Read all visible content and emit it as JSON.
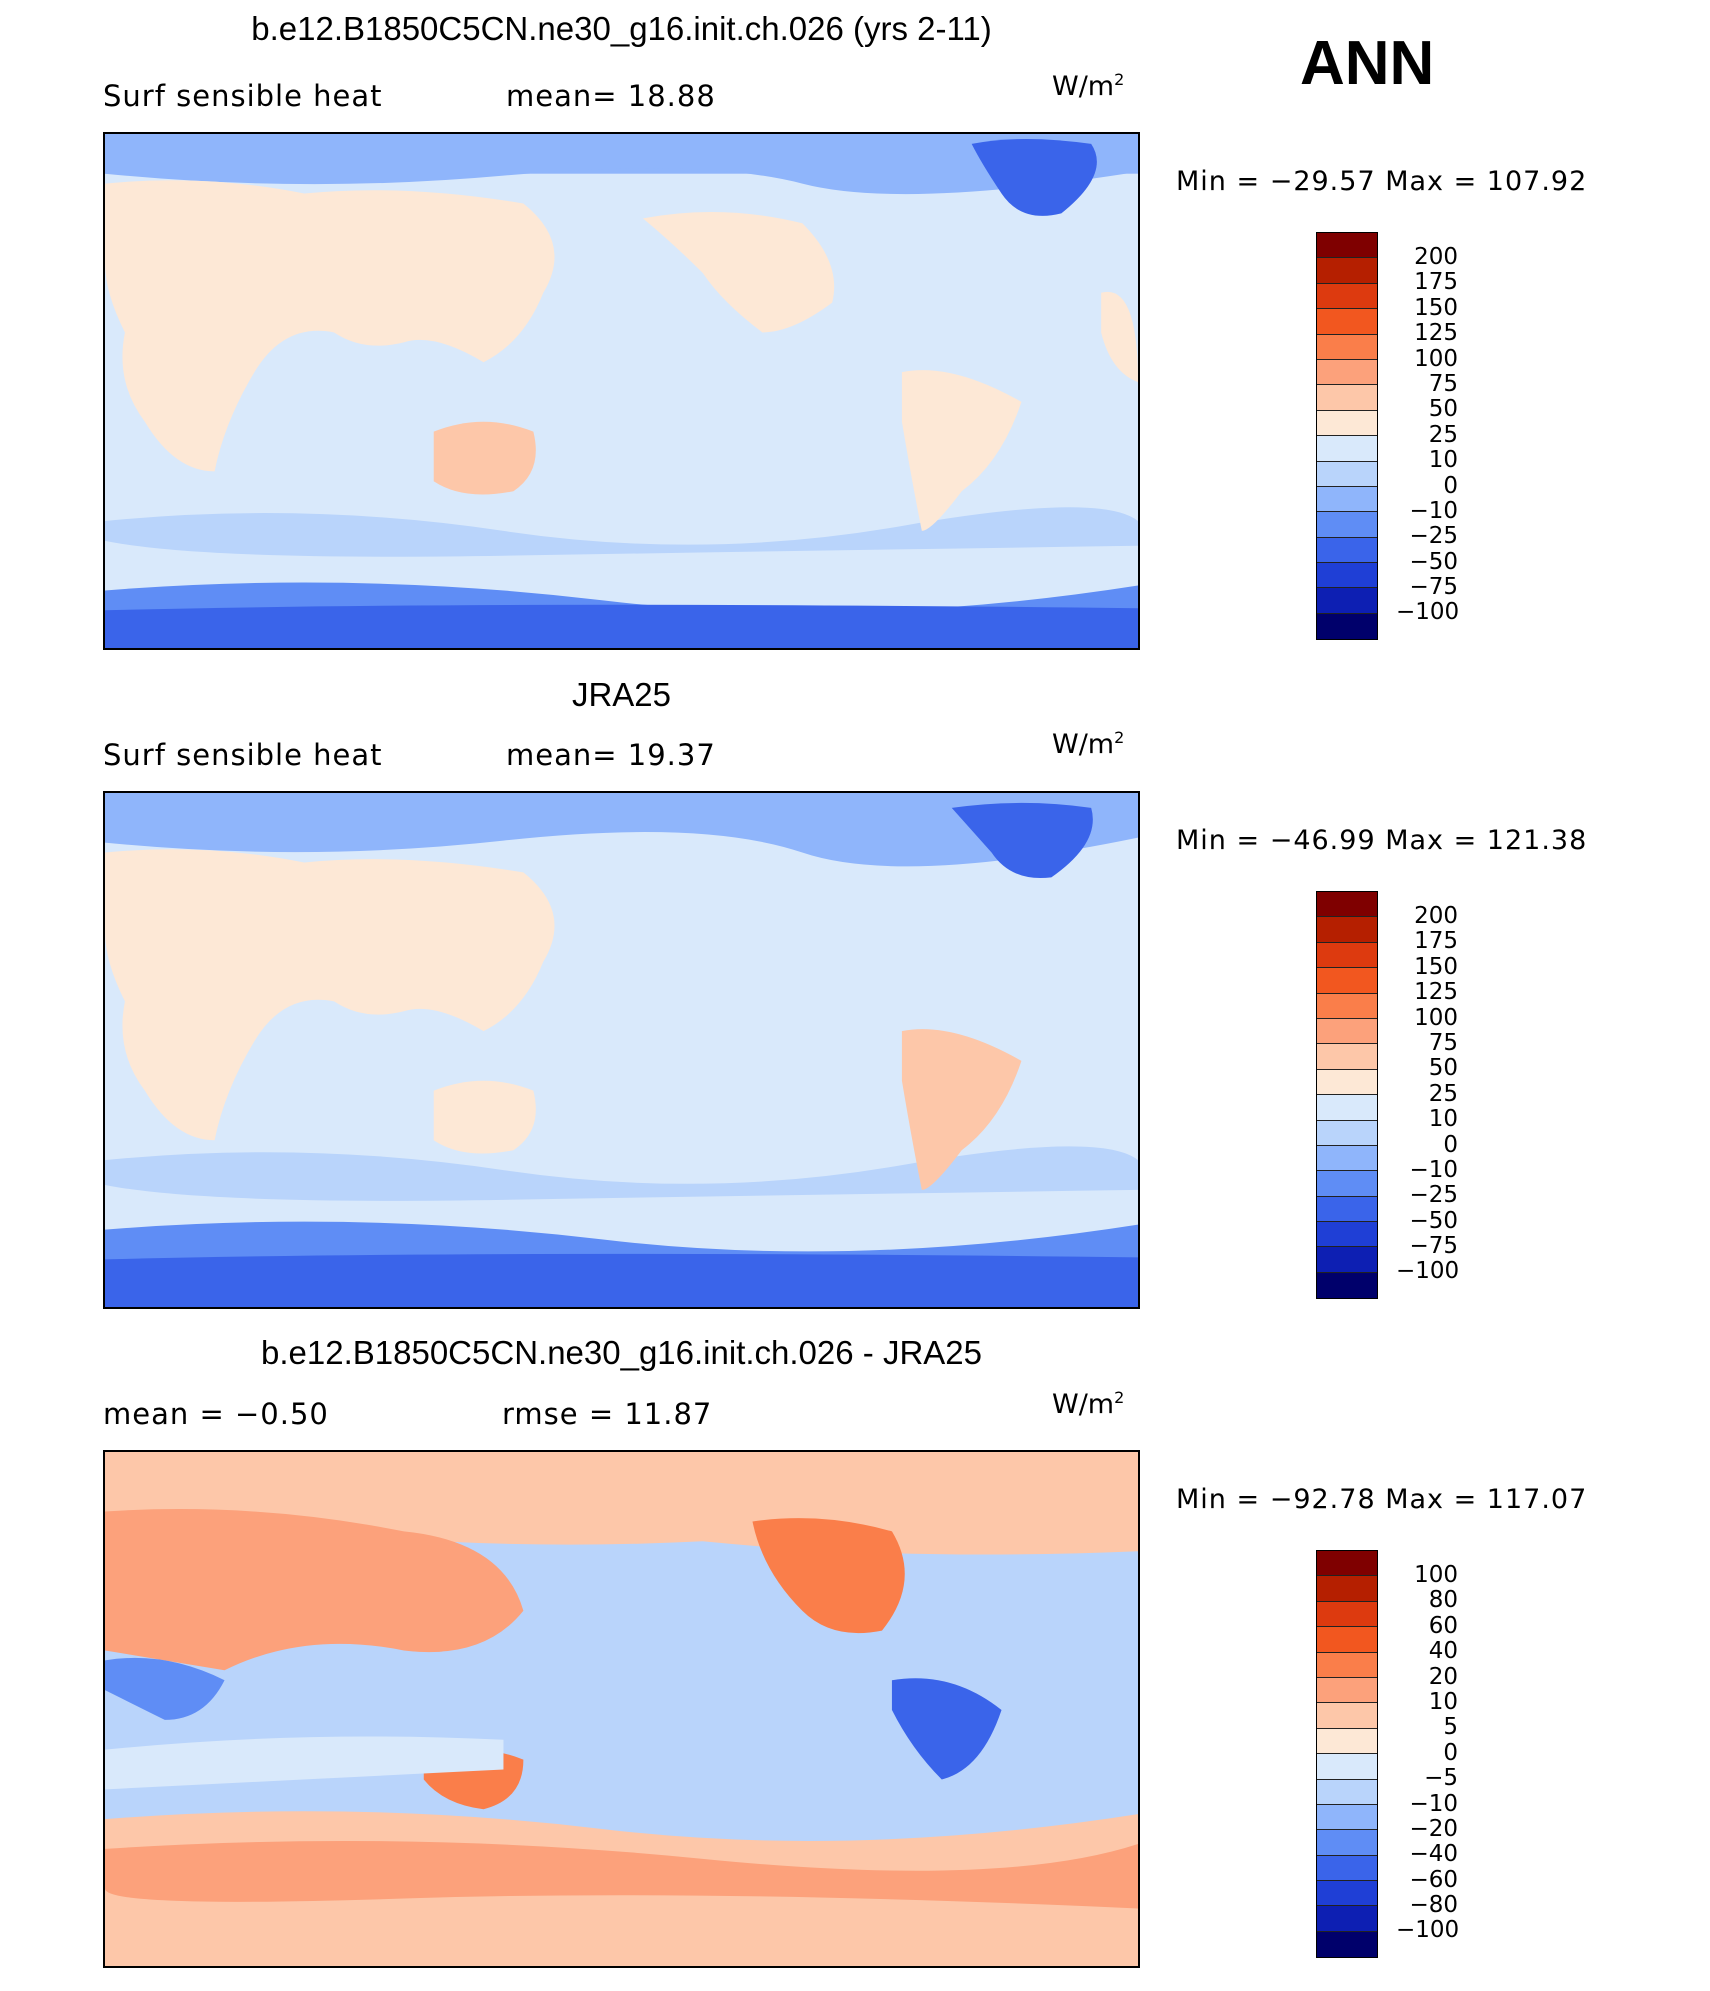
{
  "season": "ANN",
  "panels": [
    {
      "title": "b.e12.B1850C5CN.ne30_g16.init.ch.026 (yrs 2-11)",
      "left_text": "Surf  sensible  heat",
      "mid_text": "mean=   18.88",
      "units": "W/m",
      "units_sup": "2",
      "minmax": "Min  =  −29.57  Max  =  107.92",
      "colorbar_colors": [
        "#7f0000",
        "#b51f00",
        "#dd3a0f",
        "#f2571f",
        "#fa7e4a",
        "#fca17b",
        "#fdc7a9",
        "#fde8d6",
        "#d9e9fb",
        "#b9d4fb",
        "#8fb5fb",
        "#5f8df5",
        "#3a64ea",
        "#1f3fd6",
        "#0d1fb3",
        "#00006b"
      ],
      "colorbar_labels": [
        "200",
        "175",
        "150",
        "125",
        "100",
        "75",
        "50",
        "25",
        "10",
        "0",
        "−10",
        "−25",
        "−50",
        "−75",
        "−100"
      ]
    },
    {
      "title": "JRA25",
      "left_text": "Surf  sensible  heat",
      "mid_text": "mean=   19.37",
      "units": "W/m",
      "units_sup": "2",
      "minmax": "Min  =  −46.99  Max  =  121.38",
      "colorbar_colors": [
        "#7f0000",
        "#b51f00",
        "#dd3a0f",
        "#f2571f",
        "#fa7e4a",
        "#fca17b",
        "#fdc7a9",
        "#fde8d6",
        "#d9e9fb",
        "#b9d4fb",
        "#8fb5fb",
        "#5f8df5",
        "#3a64ea",
        "#1f3fd6",
        "#0d1fb3",
        "#00006b"
      ],
      "colorbar_labels": [
        "200",
        "175",
        "150",
        "125",
        "100",
        "75",
        "50",
        "25",
        "10",
        "0",
        "−10",
        "−25",
        "−50",
        "−75",
        "−100"
      ]
    },
    {
      "title": "b.e12.B1850C5CN.ne30_g16.init.ch.026 - JRA25",
      "left_text": "mean  =    −0.50",
      "mid_text": "rmse  =    11.87",
      "units": "W/m",
      "units_sup": "2",
      "minmax": "Min  =  −92.78  Max  =  117.07",
      "colorbar_colors": [
        "#7f0000",
        "#b51f00",
        "#dd3a0f",
        "#f2571f",
        "#fa7e4a",
        "#fca17b",
        "#fdc7a9",
        "#fde8d6",
        "#d9e9fb",
        "#b9d4fb",
        "#8fb5fb",
        "#5f8df5",
        "#3a64ea",
        "#1f3fd6",
        "#0d1fb3",
        "#00006b"
      ],
      "colorbar_labels": [
        "100",
        "80",
        "60",
        "40",
        "20",
        "10",
        "5",
        "0",
        "−5",
        "−10",
        "−20",
        "−40",
        "−60",
        "−80",
        "−100"
      ]
    }
  ]
}
